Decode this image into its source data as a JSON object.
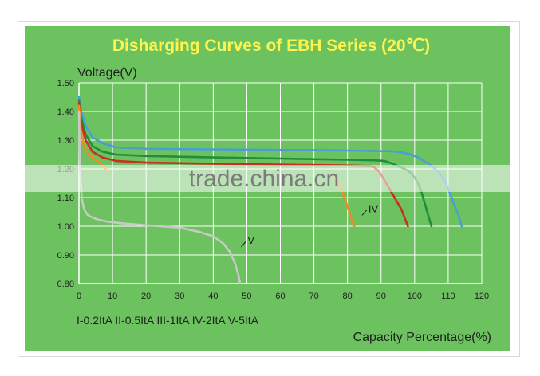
{
  "chart_data": {
    "type": "line",
    "title": "Disharging Curves of EBH Series (20℃)",
    "ylabel": "Voltage(V)",
    "xlabel": "Capacity Percentage(%)",
    "xlim": [
      0,
      120
    ],
    "ylim": [
      0.8,
      1.5
    ],
    "x_ticks": [
      "0",
      "10",
      "20",
      "30",
      "40",
      "50",
      "60",
      "70",
      "80",
      "90",
      "100",
      "110",
      "120"
    ],
    "y_ticks": [
      "0.80",
      "0.90",
      "1.00",
      "1.10",
      "1.20",
      "1.30",
      "1.40",
      "1.50"
    ],
    "grid": true,
    "legend_text": "I-0.2ItA  II-0.5ItA  III-1ItA  IV-2ItA  V-5ItA",
    "series": [
      {
        "name": "I",
        "color": "#4a9ed6",
        "x": [
          0,
          0.7,
          2,
          4,
          7,
          11,
          20,
          40,
          60,
          80,
          90,
          93,
          96,
          99,
          101,
          102,
          103,
          104,
          105,
          107,
          109,
          110,
          111,
          112,
          113,
          114
        ],
        "y": [
          1.45,
          1.4,
          1.35,
          1.31,
          1.29,
          1.275,
          1.27,
          1.268,
          1.266,
          1.264,
          1.262,
          1.262,
          1.258,
          1.25,
          1.24,
          1.233,
          1.225,
          1.22,
          1.21,
          1.19,
          1.16,
          1.13,
          1.1,
          1.07,
          1.04,
          1.0
        ]
      },
      {
        "name": "II",
        "color": "#1f8f3c",
        "x": [
          0,
          0.6,
          2,
          4,
          7,
          11,
          20,
          40,
          60,
          80,
          88,
          91,
          93,
          95,
          97,
          99,
          100,
          101,
          102,
          103,
          104,
          105
        ],
        "y": [
          1.44,
          1.38,
          1.32,
          1.28,
          1.26,
          1.25,
          1.245,
          1.24,
          1.236,
          1.232,
          1.23,
          1.228,
          1.22,
          1.21,
          1.2,
          1.185,
          1.17,
          1.15,
          1.12,
          1.08,
          1.04,
          1.0
        ]
      },
      {
        "name": "III",
        "color": "#c92f20",
        "x": [
          0,
          0.6,
          2,
          4,
          7,
          11,
          20,
          40,
          60,
          80,
          87,
          88,
          89,
          90,
          91,
          92,
          93,
          94,
          95,
          96,
          97,
          98
        ],
        "y": [
          1.43,
          1.36,
          1.3,
          1.26,
          1.24,
          1.228,
          1.222,
          1.218,
          1.215,
          1.212,
          1.21,
          1.205,
          1.195,
          1.18,
          1.16,
          1.14,
          1.12,
          1.1,
          1.08,
          1.06,
          1.03,
          1.0
        ]
      },
      {
        "name": "IV",
        "color": "#f08a26",
        "x": [
          0,
          0.5,
          1.5,
          3,
          5,
          6.5,
          7.5,
          8,
          8.5
        ],
        "y": [
          1.42,
          1.34,
          1.28,
          1.25,
          1.23,
          1.22,
          1.21,
          1.2,
          1.19
        ]
      },
      {
        "name": "IV-end",
        "color": "#f08a26",
        "x": [
          76,
          77,
          78,
          79,
          80,
          81,
          82
        ],
        "y": [
          1.18,
          1.16,
          1.13,
          1.1,
          1.07,
          1.03,
          1.0
        ]
      },
      {
        "name": "V",
        "color": "#c8c8c8",
        "x": [
          0,
          0.3,
          0.8,
          1.5,
          2.5,
          4,
          6,
          9,
          13,
          18,
          24,
          30,
          36,
          40,
          43,
          45,
          46.5,
          47.5,
          48
        ],
        "y": [
          1.4,
          1.2,
          1.1,
          1.06,
          1.04,
          1.03,
          1.022,
          1.015,
          1.01,
          1.005,
          1.0,
          0.995,
          0.98,
          0.965,
          0.94,
          0.91,
          0.87,
          0.83,
          0.8
        ]
      }
    ],
    "curve_labels": [
      {
        "text": "IV",
        "x": 86,
        "y": 1.06
      },
      {
        "text": "V",
        "x": 50,
        "y": 0.95
      }
    ]
  },
  "watermark": "trade.china.cn"
}
